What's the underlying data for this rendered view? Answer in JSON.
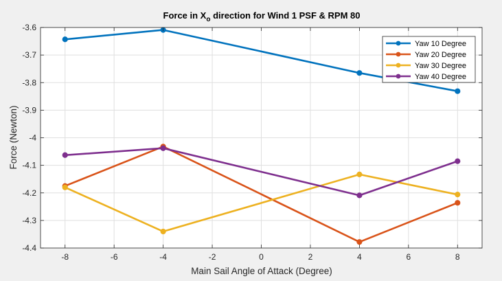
{
  "chart_data": {
    "type": "line",
    "title": {
      "prefix": "Force in X",
      "subscript": "o",
      "suffix": " direction for Wind 1 PSF & RPM 80"
    },
    "xlabel": "Main Sail Angle of Attack (Degree)",
    "ylabel": "Force (Newton)",
    "xlim": [
      -9,
      9
    ],
    "ylim": [
      -4.4,
      -3.6
    ],
    "xticks": [
      -8,
      -6,
      -4,
      -2,
      0,
      2,
      4,
      6,
      8
    ],
    "xtick_labels": [
      "-8",
      "-6",
      "-4",
      "-2",
      "0",
      "2",
      "4",
      "6",
      "8"
    ],
    "yticks": [
      -3.6,
      -3.7,
      -3.8,
      -3.9,
      -4.0,
      -4.1,
      -4.2,
      -4.3,
      -4.4
    ],
    "ytick_labels": [
      "-3.6",
      "-3.7",
      "-3.8",
      "-3.9",
      "-4",
      "-4.1",
      "-4.2",
      "-4.3",
      "-4.4"
    ],
    "grid": true,
    "legend_position": "top-right",
    "x": [
      -8,
      -4,
      4,
      8
    ],
    "series": [
      {
        "name": "Yaw 10 Degree",
        "color": "#0072bd",
        "values": [
          -3.643,
          -3.609,
          -3.765,
          -3.831
        ]
      },
      {
        "name": "Yaw 20 Degree",
        "color": "#d95319",
        "values": [
          -4.175,
          -4.032,
          -4.378,
          -4.236
        ]
      },
      {
        "name": "Yaw 30 Degree",
        "color": "#edb120",
        "values": [
          -4.18,
          -4.34,
          -4.133,
          -4.206
        ]
      },
      {
        "name": "Yaw 40 Degree",
        "color": "#7e2f8e",
        "values": [
          -4.063,
          -4.038,
          -4.209,
          -4.085
        ]
      }
    ]
  }
}
